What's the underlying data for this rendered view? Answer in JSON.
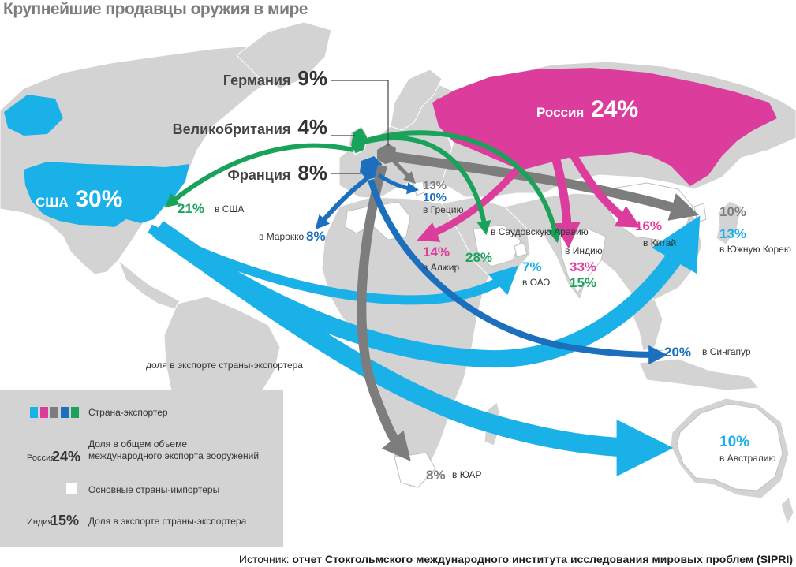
{
  "title": "Крупнейшие продавцы оружия в мире",
  "colors": {
    "usa": "#1ab1e8",
    "russia": "#dc3c9b",
    "germany": "#7d7d7d",
    "uk": "#19a25a",
    "france": "#1c6fbd",
    "land": "#d3d3d3",
    "ocean": "#ffffff",
    "importer": "#ffffff"
  },
  "exporters": {
    "usa": {
      "name": "США",
      "share": "30%"
    },
    "russia": {
      "name": "Россия",
      "share": "24%"
    },
    "germany": {
      "name": "Германия",
      "share": "9%"
    },
    "uk": {
      "name": "Великобритания",
      "share": "4%"
    },
    "france": {
      "name": "Франция",
      "share": "8%"
    }
  },
  "flows": [
    {
      "id": "uk-usa",
      "value": "21%",
      "label": "в США"
    },
    {
      "id": "germany-greece",
      "value": "13%",
      "label": ""
    },
    {
      "id": "france-greece",
      "value": "10%",
      "label": "в Грецию"
    },
    {
      "id": "france-morocco",
      "value": "8%",
      "label": "в Марокко"
    },
    {
      "id": "russia-algeria",
      "value": "14%",
      "label": "в Алжир"
    },
    {
      "id": "uk-saudi",
      "value": "28%",
      "label": "в Саудовскую Аравию"
    },
    {
      "id": "usa-uae",
      "value": "7%",
      "label": "в ОАЭ"
    },
    {
      "id": "russia-india",
      "value": "33%",
      "label": "в Индию"
    },
    {
      "id": "uk-india",
      "value": "15%",
      "label": ""
    },
    {
      "id": "russia-china",
      "value": "16%",
      "label": "в Китай"
    },
    {
      "id": "germany-korea",
      "value": "10%",
      "label": ""
    },
    {
      "id": "usa-korea",
      "value": "13%",
      "label": "в Южную Корею"
    },
    {
      "id": "france-singapore",
      "value": "20%",
      "label": "в Сингапур"
    },
    {
      "id": "usa-australia",
      "value": "10%",
      "label": "в Австралию"
    },
    {
      "id": "germany-sa",
      "value": "8%",
      "label": "в ЮАР"
    }
  ],
  "note_share_in_exports": "доля в экспорте страны-экспортера",
  "legend": {
    "exporter_label": "Страна-экспортер",
    "share_example_country": "Россия",
    "share_example_value": "24%",
    "share_label": "Доля в общем объеме международного экспорта вооружений",
    "importers_label": "Основные страны-импортеры",
    "export_example_country": "Индия",
    "export_example_value": "15%",
    "export_label": "Доля в экспорте страны-экспортера"
  },
  "source": {
    "prefix": "Источник:",
    "text": "отчет Стокгольмского международного института исследования мировых проблем (SIPRI)"
  }
}
